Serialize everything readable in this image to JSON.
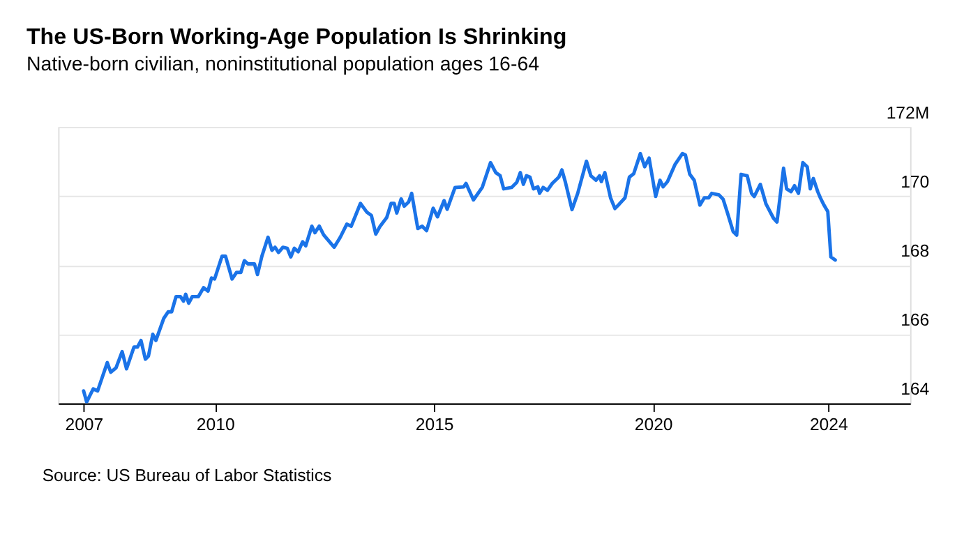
{
  "chart_data": {
    "type": "line",
    "title": "The US-Born Working-Age Population Is Shrinking",
    "subtitle": "Native-born civilian, noninstitutional population ages 16-64",
    "annotations": [
      "Source: US Bureau of Labor Statistics"
    ],
    "x": [
      2007.0,
      2007.07,
      2007.22,
      2007.32,
      2007.54,
      2007.62,
      2007.74,
      2007.88,
      2007.98,
      2008.15,
      2008.23,
      2008.31,
      2008.41,
      2008.48,
      2008.58,
      2008.65,
      2008.83,
      2008.93,
      2009.01,
      2009.11,
      2009.21,
      2009.28,
      2009.33,
      2009.4,
      2009.48,
      2009.62,
      2009.74,
      2009.84,
      2009.92,
      2009.99,
      2010.16,
      2010.24,
      2010.39,
      2010.49,
      2010.59,
      2010.67,
      2010.75,
      2010.9,
      2010.97,
      2011.07,
      2011.21,
      2011.3,
      2011.37,
      2011.45,
      2011.55,
      2011.65,
      2011.73,
      2011.81,
      2011.9,
      2012.0,
      2012.07,
      2012.21,
      2012.28,
      2012.38,
      2012.48,
      2012.72,
      2012.86,
      2013.01,
      2013.11,
      2013.32,
      2013.47,
      2013.57,
      2013.67,
      2013.77,
      2013.92,
      2014.02,
      2014.09,
      2014.15,
      2014.25,
      2014.32,
      2014.42,
      2014.49,
      2014.63,
      2014.73,
      2014.83,
      2014.98,
      2015.08,
      2015.23,
      2015.3,
      2015.48,
      2015.68,
      2015.73,
      2015.9,
      2016.1,
      2016.29,
      2016.41,
      2016.51,
      2016.59,
      2016.77,
      2016.89,
      2016.97,
      2017.04,
      2017.11,
      2017.19,
      2017.27,
      2017.37,
      2017.41,
      2017.49,
      2017.59,
      2017.7,
      2017.85,
      2017.92,
      2018.0,
      2018.15,
      2018.28,
      2018.48,
      2018.58,
      2018.7,
      2018.78,
      2018.82,
      2018.9,
      2019.03,
      2019.13,
      2019.23,
      2019.36,
      2019.46,
      2019.56,
      2019.71,
      2019.81,
      2019.91,
      2020.06,
      2020.16,
      2020.23,
      2020.33,
      2020.5,
      2020.67,
      2020.74,
      2020.84,
      2020.94,
      2021.07,
      2021.17,
      2021.27,
      2021.34,
      2021.5,
      2021.6,
      2021.7,
      2021.83,
      2021.91,
      2022.01,
      2022.15,
      2022.25,
      2022.31,
      2022.45,
      2022.58,
      2022.75,
      2022.83,
      2022.98,
      2023.05,
      2023.15,
      2023.23,
      2023.32,
      2023.42,
      2023.52,
      2023.59,
      2023.66,
      2023.76,
      2023.82,
      2023.89,
      2023.99,
      2024.06,
      2024.16
    ],
    "values": [
      164.36,
      164.04,
      164.42,
      164.36,
      165.18,
      164.9,
      165.03,
      165.5,
      165.0,
      165.63,
      165.63,
      165.82,
      165.28,
      165.37,
      166.0,
      165.82,
      166.46,
      166.65,
      166.65,
      167.09,
      167.09,
      166.96,
      167.16,
      166.9,
      167.09,
      167.09,
      167.35,
      167.25,
      167.63,
      167.6,
      168.26,
      168.26,
      167.6,
      167.79,
      167.79,
      168.13,
      168.04,
      168.04,
      167.73,
      168.26,
      168.81,
      168.43,
      168.52,
      168.37,
      168.52,
      168.49,
      168.24,
      168.49,
      168.39,
      168.68,
      168.56,
      169.13,
      168.94,
      169.13,
      168.88,
      168.52,
      168.81,
      169.19,
      169.13,
      169.79,
      169.53,
      169.44,
      168.9,
      169.13,
      169.38,
      169.79,
      169.79,
      169.51,
      169.92,
      169.71,
      169.83,
      170.08,
      169.06,
      169.13,
      169.0,
      169.65,
      169.4,
      169.87,
      169.62,
      170.25,
      170.27,
      170.37,
      169.89,
      170.25,
      170.97,
      170.68,
      170.59,
      170.21,
      170.25,
      170.4,
      170.68,
      170.34,
      170.59,
      170.55,
      170.21,
      170.27,
      170.08,
      170.25,
      170.17,
      170.37,
      170.55,
      170.76,
      170.4,
      169.61,
      170.08,
      171.01,
      170.59,
      170.46,
      170.59,
      170.42,
      170.68,
      169.95,
      169.64,
      169.77,
      169.95,
      170.55,
      170.65,
      171.23,
      170.85,
      171.1,
      169.99,
      170.46,
      170.27,
      170.42,
      170.91,
      171.23,
      171.19,
      170.63,
      170.46,
      169.74,
      169.95,
      169.95,
      170.08,
      170.04,
      169.91,
      169.51,
      168.97,
      168.87,
      170.63,
      170.59,
      170.08,
      169.99,
      170.34,
      169.77,
      169.36,
      169.25,
      170.81,
      170.21,
      170.13,
      170.3,
      170.08,
      170.97,
      170.85,
      170.21,
      170.51,
      170.13,
      169.95,
      169.77,
      169.55,
      168.24,
      168.15
    ],
    "color": "#1a73e8",
    "xlim": [
      2006.42,
      2025.87
    ],
    "xticks": [
      2007,
      2010,
      2015,
      2020,
      2024
    ],
    "ylim": [
      164,
      172
    ],
    "yticks": [
      164,
      166,
      168,
      170,
      {
        "value": 172,
        "label": "172M"
      }
    ],
    "grid": "y",
    "marker": "none",
    "line_style": "solid"
  }
}
